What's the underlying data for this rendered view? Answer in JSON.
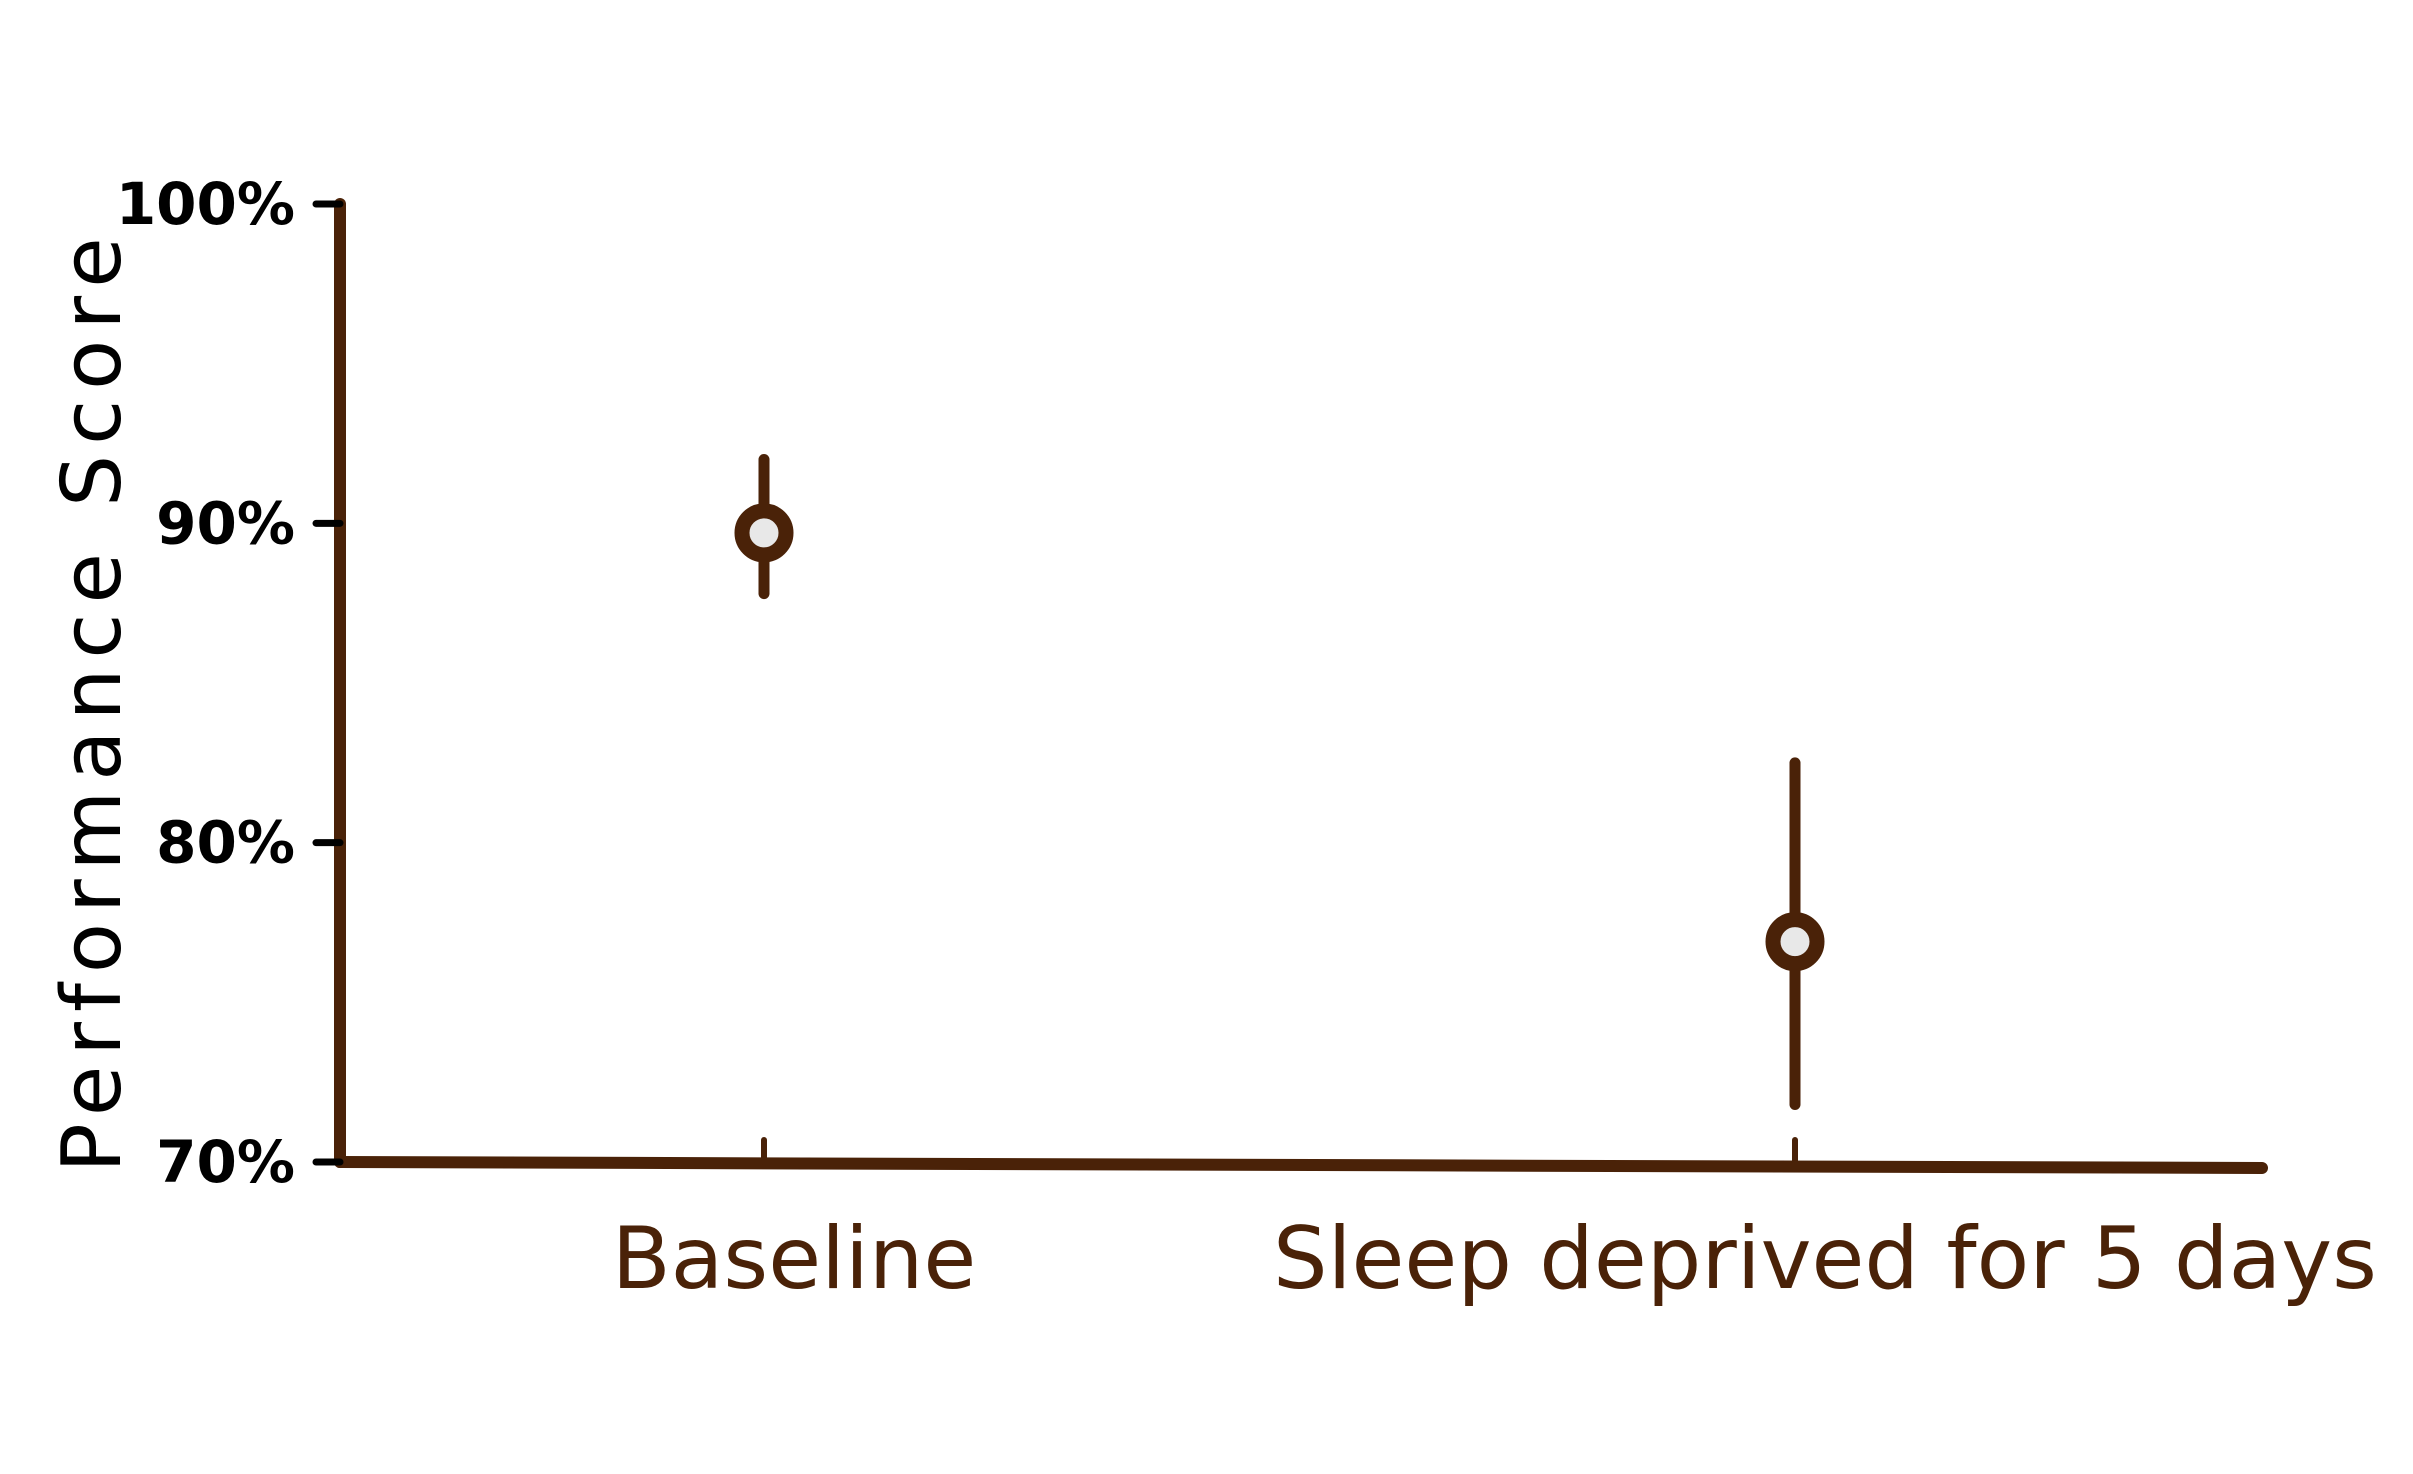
{
  "chart_data": {
    "type": "scatter",
    "title": "",
    "xlabel": "",
    "ylabel": "Performance Score",
    "ylim": [
      70,
      100
    ],
    "yticks": [
      {
        "value": 70,
        "label": "70%"
      },
      {
        "value": 80,
        "label": "80%"
      },
      {
        "value": 90,
        "label": "90%"
      },
      {
        "value": 100,
        "label": "100%"
      }
    ],
    "categories": [
      "Baseline",
      "Sleep deprived for 5 days"
    ],
    "points": [
      {
        "category": "Baseline",
        "value": 89.7,
        "err_low": 87.8,
        "err_high": 92.0
      },
      {
        "category": "Sleep deprived for 5 days",
        "value": 76.9,
        "err_low": 71.8,
        "err_high": 82.5
      }
    ],
    "grid": false,
    "colors": {
      "series": "#4a2208",
      "axis": "#4a2208",
      "tick_text": "#000000",
      "marker_fill": "#e8e8e8"
    }
  }
}
